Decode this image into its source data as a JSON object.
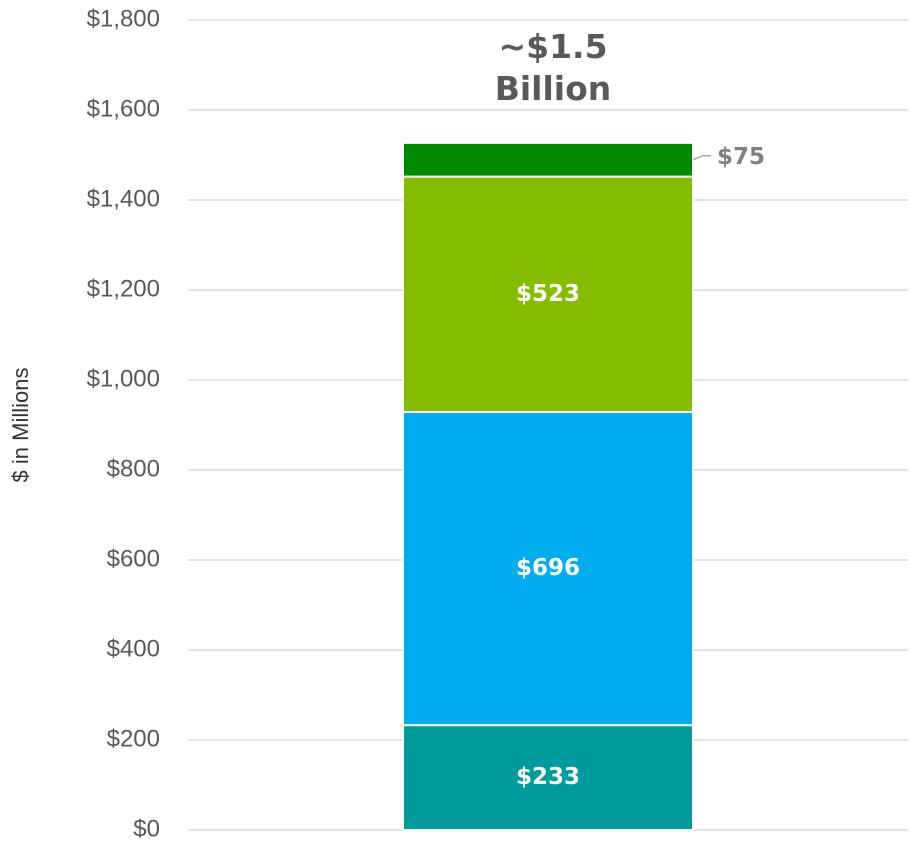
{
  "chart_data": {
    "type": "stacked_bar",
    "y_label": "$ in Millions",
    "annotation": "~$1.5 Billion",
    "categories": [
      null
    ],
    "series": [
      {
        "color": "#009c9c",
        "values": [
          233
        ],
        "value_labels": [
          "$233"
        ]
      },
      {
        "color": "#00adef",
        "values": [
          696
        ],
        "value_labels": [
          "$696"
        ]
      },
      {
        "color": "#84bd00",
        "values": [
          523
        ],
        "value_labels": [
          "$523"
        ]
      },
      {
        "color": "#008a00",
        "values": [
          75
        ],
        "value_labels": [
          "$75"
        ]
      }
    ],
    "ylim": [
      0,
      1800
    ],
    "yticks": [
      {
        "value": 0,
        "label": "$0"
      },
      {
        "value": 200,
        "label": "$200"
      },
      {
        "value": 400,
        "label": "$400"
      },
      {
        "value": 600,
        "label": "$600"
      },
      {
        "value": 800,
        "label": "$800"
      },
      {
        "value": 1000,
        "label": "$1,000"
      },
      {
        "value": 1200,
        "label": "$1,200"
      },
      {
        "value": 1400,
        "label": "$1,400"
      },
      {
        "value": 1600,
        "label": "$1,600"
      },
      {
        "value": 1800,
        "label": "$1,800"
      }
    ],
    "grid": true
  }
}
